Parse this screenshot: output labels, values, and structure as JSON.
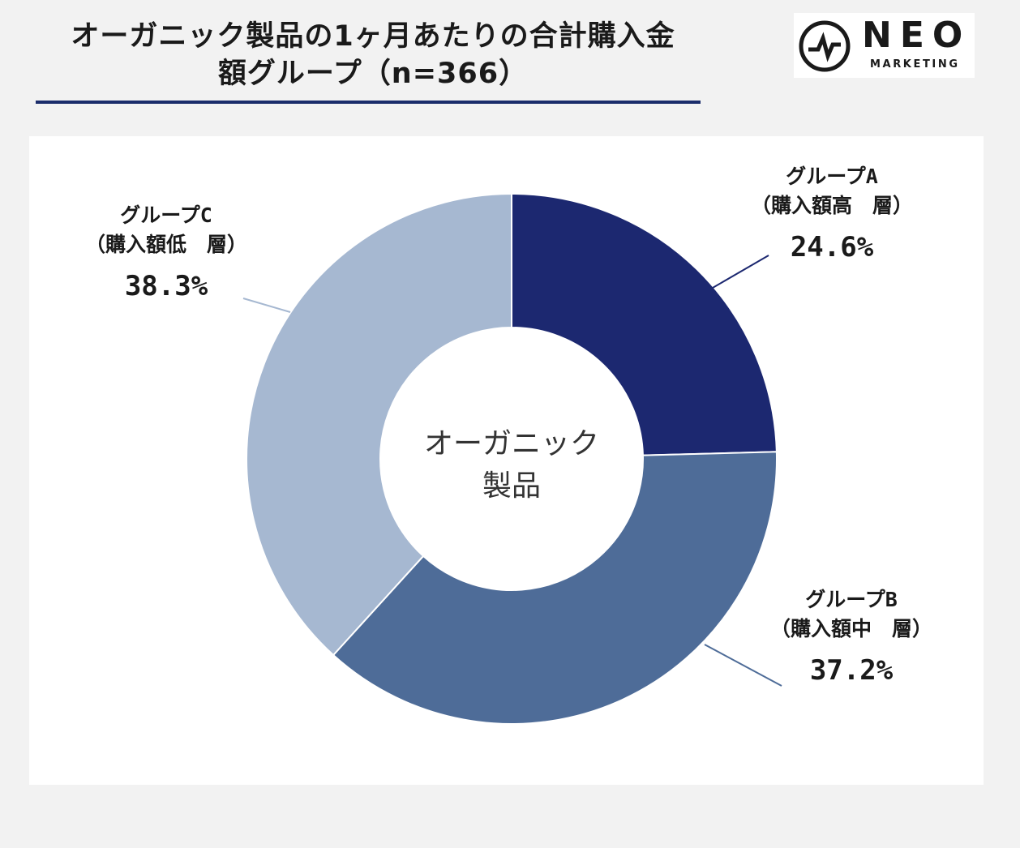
{
  "header": {
    "title_line1": "オーガニック製品の1ヶ月あたりの合計購入金",
    "title_line2": "額グループ（n=366）"
  },
  "logo": {
    "name": "NEO",
    "subtitle": "MARKETING"
  },
  "chart_data": {
    "type": "pie",
    "variant": "donut",
    "title": "オーガニック製品の1ヶ月あたりの合計購入金額グループ（n=366）",
    "center_label": [
      "オーガニック",
      "製品"
    ],
    "series": [
      {
        "name": "グループA",
        "sub": "（購入額高　層）",
        "value": 24.6,
        "label": "24.6%",
        "color": "#1c2870"
      },
      {
        "name": "グループB",
        "sub": "（購入額中　層）",
        "value": 37.2,
        "label": "37.2%",
        "color": "#4e6c98"
      },
      {
        "name": "グループC",
        "sub": "（購入額低　層）",
        "value": 38.3,
        "label": "38.3%",
        "color": "#a6b8d1"
      }
    ]
  }
}
